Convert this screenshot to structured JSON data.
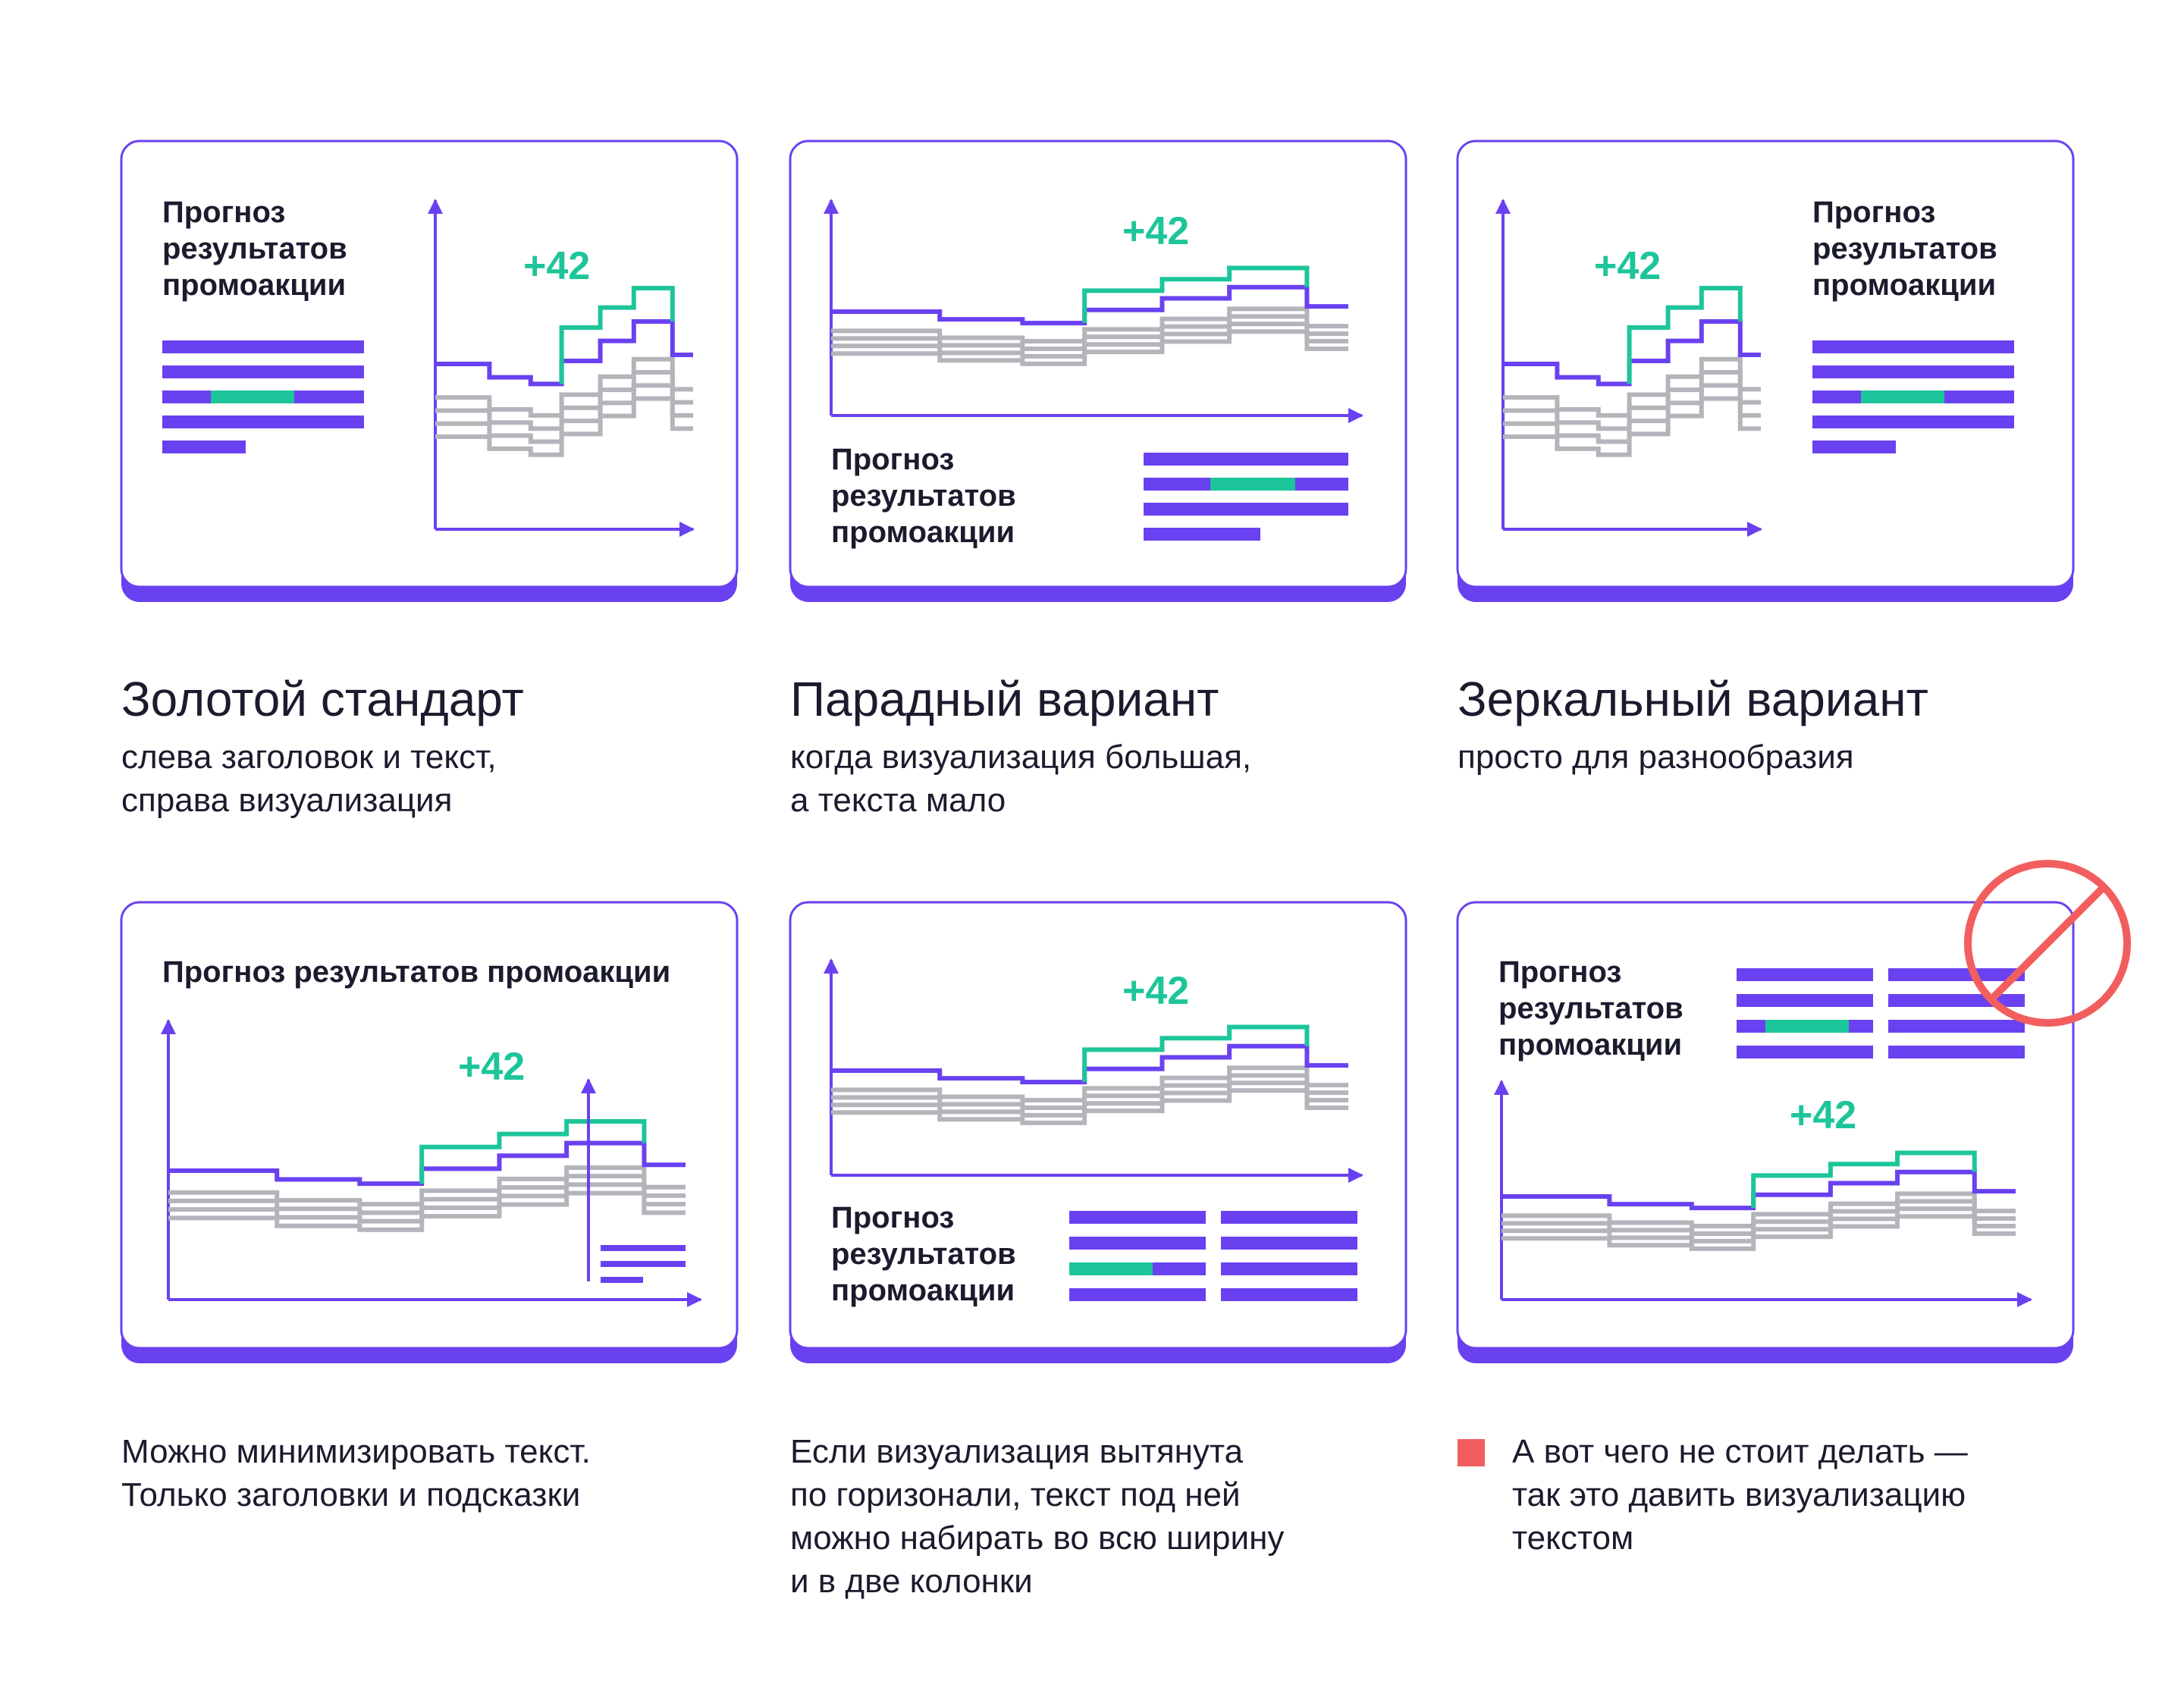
{
  "colors": {
    "accent": "#6a41f0",
    "highlight": "#1dc59a",
    "gray": "#b4b4bb",
    "forbidden": "#f25e5e",
    "text": "#1b1b2e"
  },
  "cards": [
    {
      "title": "Прогноз\nрезультатов\nпромоакции",
      "delta": "+42"
    },
    {
      "title": "Прогноз\nрезультатов\nпромоакции",
      "delta": "+42"
    },
    {
      "title": "Прогноз\nрезультатов\nпромоакции",
      "delta": "+42"
    },
    {
      "title": "Прогноз результатов промоакции",
      "delta": "+42"
    },
    {
      "title": "Прогноз\nрезультатов\nпромоакции",
      "delta": "+42"
    },
    {
      "title": "Прогноз\nрезультатов\nпромоакции",
      "delta": "+42",
      "icon": "prohibited-icon"
    }
  ],
  "descriptions": [
    {
      "heading": "Золотой стандарт",
      "text": "слева заголовок и текст,\nсправа визуализация"
    },
    {
      "heading": "Парадный вариант",
      "text": "когда визуализация большая,\nа текста мало"
    },
    {
      "heading": "Зеркальный вариант",
      "text": "просто для разнообразия"
    },
    {
      "text": "Можно минимизировать текст.\nТолько заголовки и подсказки"
    },
    {
      "text": "Если визуализация вытянута\nпо горизонали, текст под ней\nможно набирать во всю ширину\nи в две колонки"
    },
    {
      "text": "А вот чего не стоит делать —\nтак это давить визуализацию\nтекстом",
      "marker_icon": "red-square-icon"
    }
  ]
}
